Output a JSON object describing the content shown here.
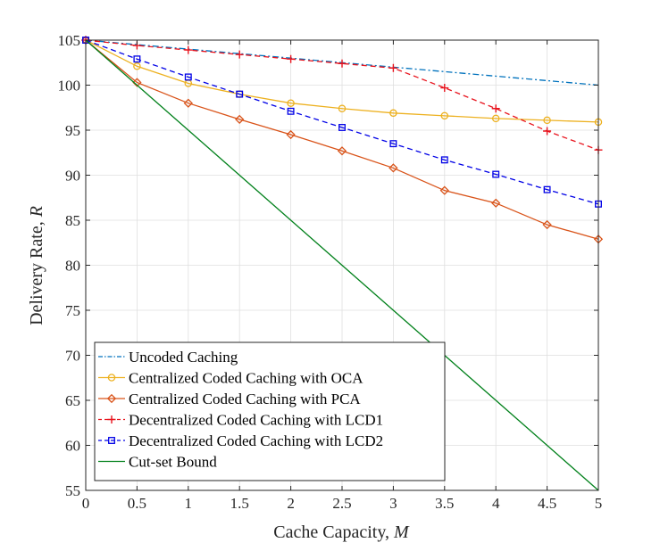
{
  "chart_data": {
    "type": "line",
    "title": "",
    "xlabel": "Cache Capacity, ",
    "xlabel_var": "M",
    "ylabel": "Delivery Rate, ",
    "ylabel_var": "R",
    "xlim": [
      0,
      5
    ],
    "ylim": [
      55,
      105
    ],
    "grid": true,
    "legend_position": "bottom-left",
    "xticks": [
      0,
      0.5,
      1,
      1.5,
      2,
      2.5,
      3,
      3.5,
      4,
      4.5,
      5
    ],
    "xtick_labels": [
      "0",
      "0.5",
      "1",
      "1.5",
      "2",
      "2.5",
      "3",
      "3.5",
      "4",
      "4.5",
      "5"
    ],
    "yticks": [
      55,
      60,
      65,
      70,
      75,
      80,
      85,
      90,
      95,
      100,
      105
    ],
    "ytick_labels": [
      "55",
      "60",
      "65",
      "70",
      "75",
      "80",
      "85",
      "90",
      "95",
      "100",
      "105"
    ],
    "series": [
      {
        "name": "Uncoded Caching",
        "color": "#0072BD",
        "dash": "dashdot",
        "marker": "none",
        "x": [
          0,
          5
        ],
        "values": [
          105,
          100
        ]
      },
      {
        "name": "Centralized Coded Caching with OCA",
        "color": "#EDB120",
        "dash": "solid",
        "marker": "circle",
        "x": [
          0,
          0.5,
          1,
          1.5,
          2,
          2.5,
          3,
          3.5,
          4,
          4.5,
          5
        ],
        "values": [
          105,
          102.1,
          100.2,
          99.0,
          98.0,
          97.4,
          96.9,
          96.6,
          96.3,
          96.1,
          95.9
        ]
      },
      {
        "name": "Centralized Coded Caching with PCA",
        "color": "#D95319",
        "dash": "solid",
        "marker": "diamond",
        "x": [
          0,
          0.5,
          1,
          1.5,
          2,
          2.5,
          3,
          3.5,
          4,
          4.5,
          5
        ],
        "values": [
          105,
          100.3,
          98.0,
          96.2,
          94.5,
          92.7,
          90.8,
          88.3,
          86.9,
          84.5,
          82.9
        ]
      },
      {
        "name": "Decentralized Coded Caching with LCD1",
        "color": "#E8141E",
        "dash": "dashed",
        "marker": "plus",
        "x": [
          0,
          0.5,
          1,
          1.5,
          2,
          2.5,
          3,
          3.5,
          4,
          4.5,
          5
        ],
        "values": [
          105,
          104.4,
          103.9,
          103.4,
          102.9,
          102.4,
          101.9,
          99.7,
          97.4,
          94.9,
          92.8
        ]
      },
      {
        "name": "Decentralized Coded Caching with LCD2",
        "color": "#0000E6",
        "dash": "dashed",
        "marker": "square",
        "x": [
          0,
          0.5,
          1,
          1.5,
          2,
          2.5,
          3,
          3.5,
          4,
          4.5,
          5
        ],
        "values": [
          105,
          102.9,
          100.9,
          99.0,
          97.1,
          95.3,
          93.5,
          91.7,
          90.1,
          88.4,
          86.8
        ]
      },
      {
        "name": "Cut-set Bound",
        "color": "#00801A",
        "dash": "solid",
        "marker": "none",
        "x": [
          0,
          5
        ],
        "values": [
          105,
          55
        ]
      }
    ]
  }
}
